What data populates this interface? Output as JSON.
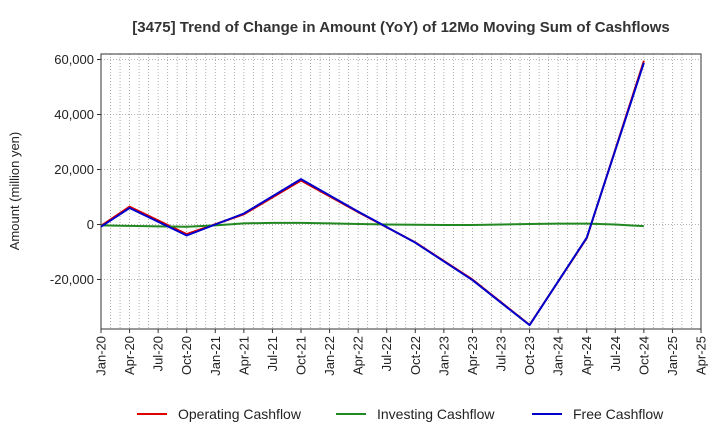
{
  "chart_data": {
    "type": "line",
    "title": "[3475]  Trend of Change in Amount (YoY) of 12Mo Moving Sum of Cashflows",
    "ylabel": "Amount (million yen)",
    "xlabel": "",
    "ylim": [
      -38000,
      62000
    ],
    "yticks": [
      60000,
      40000,
      20000,
      0,
      -20000
    ],
    "ytick_labels": [
      "60,000",
      "40,000",
      "20,000",
      "0",
      "-20,000"
    ],
    "x_labels": [
      "Jan-20",
      "Apr-20",
      "Jul-20",
      "Oct-20",
      "Jan-21",
      "Apr-21",
      "Jul-21",
      "Oct-21",
      "Jan-22",
      "Apr-22",
      "Jul-22",
      "Oct-22",
      "Jan-23",
      "Apr-23",
      "Jul-23",
      "Oct-23",
      "Jan-24",
      "Apr-24",
      "Jul-24",
      "Oct-24",
      "Jan-25",
      "Apr-25"
    ],
    "grid": true,
    "legend_position": "bottom",
    "series": [
      {
        "name": "Operating Cashflow",
        "color": "#dd0000",
        "points": [
          [
            0,
            -500
          ],
          [
            1,
            6500
          ],
          [
            3,
            -3500
          ],
          [
            5,
            3700
          ],
          [
            7,
            16000
          ],
          [
            9,
            4500
          ],
          [
            11,
            -6500
          ],
          [
            13,
            -20000
          ],
          [
            15,
            -36500
          ],
          [
            17,
            -5000
          ],
          [
            19,
            59500
          ]
        ]
      },
      {
        "name": "Investing Cashflow",
        "color": "#228822",
        "points": [
          [
            0,
            -300
          ],
          [
            1,
            -500
          ],
          [
            2,
            -700
          ],
          [
            3,
            -800
          ],
          [
            4,
            -300
          ],
          [
            5,
            400
          ],
          [
            6,
            600
          ],
          [
            7,
            600
          ],
          [
            8,
            400
          ],
          [
            9,
            200
          ],
          [
            10,
            0
          ],
          [
            11,
            -100
          ],
          [
            12,
            -200
          ],
          [
            13,
            -200
          ],
          [
            14,
            0
          ],
          [
            15,
            200
          ],
          [
            16,
            300
          ],
          [
            17,
            300
          ],
          [
            18,
            0
          ],
          [
            19,
            -600
          ]
        ]
      },
      {
        "name": "Free Cashflow",
        "color": "#0000cc",
        "points": [
          [
            0,
            -800
          ],
          [
            1,
            6000
          ],
          [
            3,
            -4000
          ],
          [
            5,
            4000
          ],
          [
            7,
            16500
          ],
          [
            9,
            4700
          ],
          [
            11,
            -6600
          ],
          [
            13,
            -20200
          ],
          [
            15,
            -36600
          ],
          [
            17,
            -4800
          ],
          [
            19,
            58800
          ]
        ]
      }
    ]
  }
}
